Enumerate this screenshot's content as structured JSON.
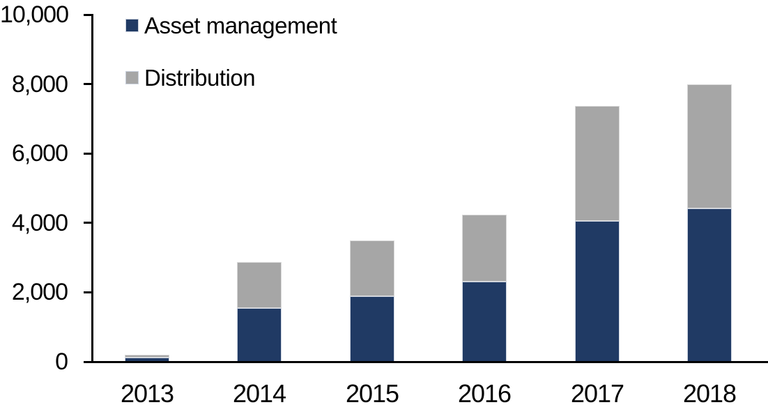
{
  "chart_data": {
    "type": "stacked-bar",
    "title": "",
    "xlabel": "",
    "ylabel": "",
    "categories": [
      "2013",
      "2014",
      "2015",
      "2016",
      "2017",
      "2018"
    ],
    "series": [
      {
        "name": "Asset management",
        "color": "#203a64",
        "values": [
          120,
          1550,
          1890,
          2300,
          4050,
          4420
        ]
      },
      {
        "name": "Distribution",
        "color": "#a6a6a6",
        "values": [
          80,
          1330,
          1610,
          1940,
          3320,
          3580
        ]
      }
    ],
    "totals": [
      200,
      2880,
      3500,
      4240,
      7370,
      8000
    ],
    "ylim": [
      0,
      10000
    ],
    "yticks": [
      {
        "value": 0,
        "label": "0"
      },
      {
        "value": 2000,
        "label": "2,000"
      },
      {
        "value": 4000,
        "label": "4,000"
      },
      {
        "value": 6000,
        "label": "6,000"
      },
      {
        "value": 8000,
        "label": "8,000"
      },
      {
        "value": 10000,
        "label": "10,000"
      }
    ],
    "grid": "off",
    "legend_position": "top-left-inside",
    "axis_color": "#000000",
    "text_color": "#000000",
    "background": "#ffffff"
  }
}
